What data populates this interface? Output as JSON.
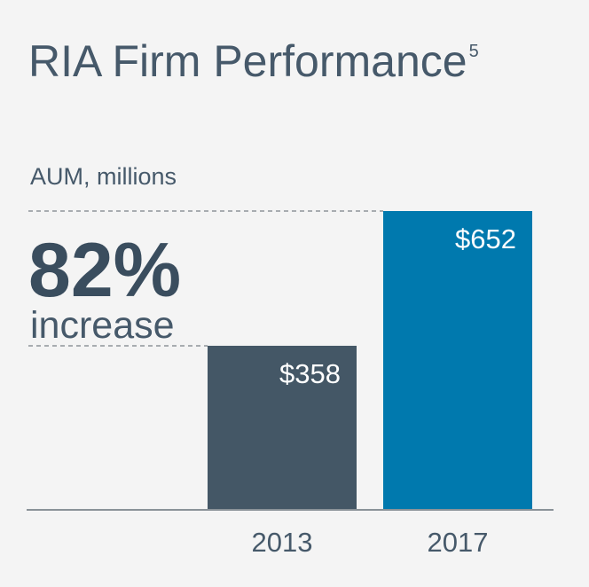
{
  "title": "RIA Firm Performance",
  "footnote": "5",
  "unit_label": "AUM, millions",
  "highlight": {
    "value": "82%",
    "caption": "increase"
  },
  "chart_data": {
    "type": "bar",
    "title": "RIA Firm Performance",
    "ylabel": "AUM, millions",
    "xlabel": "",
    "categories": [
      "2013",
      "2017"
    ],
    "values": [
      358,
      652
    ],
    "data_labels": [
      "$358",
      "$652"
    ],
    "bar_colors": [
      "#445766",
      "#0079ae"
    ],
    "ylim": [
      0,
      652
    ],
    "grid": false,
    "reference_lines": "dashed lines from each bar top to the left",
    "annotation": "82% increase"
  },
  "colors": {
    "background": "#f4f4f4",
    "text": "#46596a",
    "bar_2013": "#445766",
    "bar_2017": "#0079ae",
    "axis": "#8a9298",
    "dash": "#8f9499"
  }
}
